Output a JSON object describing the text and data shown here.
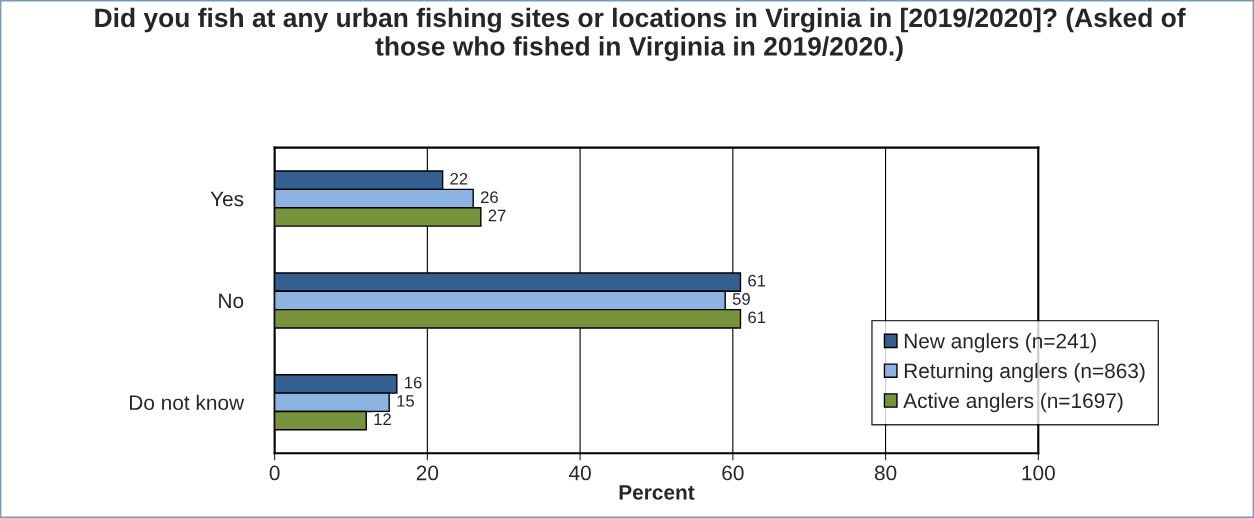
{
  "chart_data": {
    "type": "bar",
    "orientation": "horizontal",
    "title": "Did you fish at any urban fishing sites or locations in Virginia in [2019/2020]? (Asked of those who fished in Virginia in 2019/2020.)",
    "xlabel": "Percent",
    "categories": [
      "Yes",
      "No",
      "Do not know"
    ],
    "series": [
      {
        "name": "New anglers (n=241)",
        "color": "#355f91",
        "values": [
          22,
          61,
          16
        ]
      },
      {
        "name": "Returning anglers (n=863)",
        "color": "#8db3e2",
        "values": [
          26,
          59,
          15
        ]
      },
      {
        "name": "Active anglers (n=1697)",
        "color": "#77933c",
        "values": [
          27,
          61,
          12
        ]
      }
    ],
    "xlim": [
      0,
      100
    ],
    "xticks": [
      0,
      20,
      40,
      60,
      80,
      100
    ],
    "grid": "x",
    "legend": "bottom right",
    "data_labels": true
  }
}
